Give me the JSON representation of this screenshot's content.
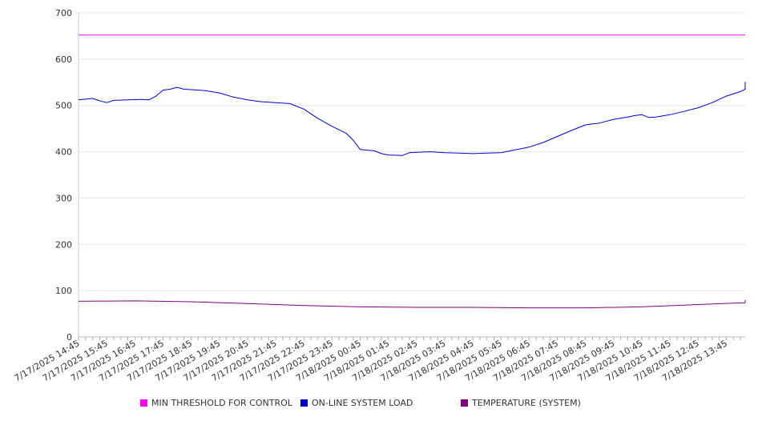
{
  "chart_data": {
    "type": "line",
    "y_range": [
      0,
      700
    ],
    "y_ticks": [
      0,
      100,
      200,
      300,
      400,
      500,
      600,
      700
    ],
    "x_start": "7/17/2025 14:45",
    "x_tick_labels": [
      "7/17/2025 14:45",
      "7/17/2025 15:45",
      "7/17/2025 16:45",
      "7/17/2025 17:45",
      "7/17/2025 18:45",
      "7/17/2025 19:45",
      "7/17/2025 20:45",
      "7/17/2025 21:45",
      "7/17/2025 22:45",
      "7/17/2025 23:45",
      "7/18/2025 00:45",
      "7/18/2025 01:45",
      "7/18/2025 02:45",
      "7/18/2025 03:45",
      "7/18/2025 04:45",
      "7/18/2025 05:45",
      "7/18/2025 06:45",
      "7/18/2025 07:45",
      "7/18/2025 08:45",
      "7/18/2025 09:45",
      "7/18/2025 10:45",
      "7/18/2025 11:45",
      "7/18/2025 12:45",
      "7/18/2025 13:45"
    ],
    "grid": true,
    "legend_position": "bottom",
    "series": [
      {
        "name": "MIN THRESHOLD FOR CONTROL",
        "color": "#ff00ff",
        "points": [
          [
            "7/17/2025 14:45",
            652
          ],
          [
            "7/18/2025 14:30",
            652
          ]
        ]
      },
      {
        "name": "ON-LINE SYSTEM LOAD",
        "color": "#0000cc",
        "points": [
          [
            "7/17/2025 14:45",
            512
          ],
          [
            "7/17/2025 15:15",
            515
          ],
          [
            "7/17/2025 15:30",
            510
          ],
          [
            "7/17/2025 15:45",
            506
          ],
          [
            "7/17/2025 16:00",
            511
          ],
          [
            "7/17/2025 16:30",
            512
          ],
          [
            "7/17/2025 17:00",
            513
          ],
          [
            "7/17/2025 17:15",
            512
          ],
          [
            "7/17/2025 17:30",
            520
          ],
          [
            "7/17/2025 17:45",
            533
          ],
          [
            "7/17/2025 18:00",
            535
          ],
          [
            "7/17/2025 18:15",
            539
          ],
          [
            "7/17/2025 18:30",
            535
          ],
          [
            "7/17/2025 18:45",
            534
          ],
          [
            "7/17/2025 19:15",
            532
          ],
          [
            "7/17/2025 19:45",
            527
          ],
          [
            "7/17/2025 20:15",
            518
          ],
          [
            "7/17/2025 20:45",
            512
          ],
          [
            "7/17/2025 21:15",
            508
          ],
          [
            "7/17/2025 21:45",
            506
          ],
          [
            "7/17/2025 22:15",
            504
          ],
          [
            "7/17/2025 22:45",
            492
          ],
          [
            "7/17/2025 23:15",
            472
          ],
          [
            "7/17/2025 23:45",
            455
          ],
          [
            "7/18/2025 00:15",
            440
          ],
          [
            "7/18/2025 00:30",
            425
          ],
          [
            "7/18/2025 00:45",
            405
          ],
          [
            "7/18/2025 01:15",
            402
          ],
          [
            "7/18/2025 01:30",
            396
          ],
          [
            "7/18/2025 01:45",
            393
          ],
          [
            "7/18/2025 02:15",
            392
          ],
          [
            "7/18/2025 02:30",
            398
          ],
          [
            "7/18/2025 02:45",
            399
          ],
          [
            "7/18/2025 03:15",
            400
          ],
          [
            "7/18/2025 03:45",
            398
          ],
          [
            "7/18/2025 04:15",
            397
          ],
          [
            "7/18/2025 04:45",
            396
          ],
          [
            "7/18/2025 05:15",
            397
          ],
          [
            "7/18/2025 05:45",
            398
          ],
          [
            "7/18/2025 06:15",
            404
          ],
          [
            "7/18/2025 06:45",
            410
          ],
          [
            "7/18/2025 07:15",
            420
          ],
          [
            "7/18/2025 07:45",
            433
          ],
          [
            "7/18/2025 08:15",
            446
          ],
          [
            "7/18/2025 08:45",
            458
          ],
          [
            "7/18/2025 09:15",
            462
          ],
          [
            "7/18/2025 09:45",
            470
          ],
          [
            "7/18/2025 10:15",
            475
          ],
          [
            "7/18/2025 10:30",
            478
          ],
          [
            "7/18/2025 10:45",
            480
          ],
          [
            "7/18/2025 11:00",
            474
          ],
          [
            "7/18/2025 11:15",
            475
          ],
          [
            "7/18/2025 11:45",
            480
          ],
          [
            "7/18/2025 12:15",
            487
          ],
          [
            "7/18/2025 12:45",
            495
          ],
          [
            "7/18/2025 13:15",
            506
          ],
          [
            "7/18/2025 13:45",
            520
          ],
          [
            "7/18/2025 14:15",
            530
          ],
          [
            "7/18/2025 14:45",
            535
          ],
          [
            "7/18/2025 15:15",
            543
          ],
          [
            "7/18/2025 15:30",
            548
          ],
          [
            "7/18/2025 15:45",
            551
          ]
        ]
      },
      {
        "name": "TEMPERATURE (SYSTEM)",
        "color": "#800080",
        "points": [
          [
            "7/17/2025 14:45",
            77
          ],
          [
            "7/17/2025 16:45",
            78
          ],
          [
            "7/17/2025 18:45",
            76
          ],
          [
            "7/17/2025 20:45",
            72
          ],
          [
            "7/17/2025 22:45",
            68
          ],
          [
            "7/18/2025 00:45",
            65
          ],
          [
            "7/18/2025 02:45",
            64
          ],
          [
            "7/18/2025 04:45",
            64
          ],
          [
            "7/18/2025 06:45",
            63
          ],
          [
            "7/18/2025 08:45",
            63
          ],
          [
            "7/18/2025 10:45",
            65
          ],
          [
            "7/18/2025 12:45",
            70
          ],
          [
            "7/18/2025 14:45",
            74
          ],
          [
            "7/18/2025 15:45",
            80
          ]
        ]
      }
    ],
    "legend": [
      {
        "label": "MIN THRESHOLD FOR CONTROL",
        "color": "#ff00ff"
      },
      {
        "label": "ON-LINE SYSTEM LOAD",
        "color": "#0000cc"
      },
      {
        "label": "TEMPERATURE (SYSTEM)",
        "color": "#800080"
      }
    ]
  }
}
